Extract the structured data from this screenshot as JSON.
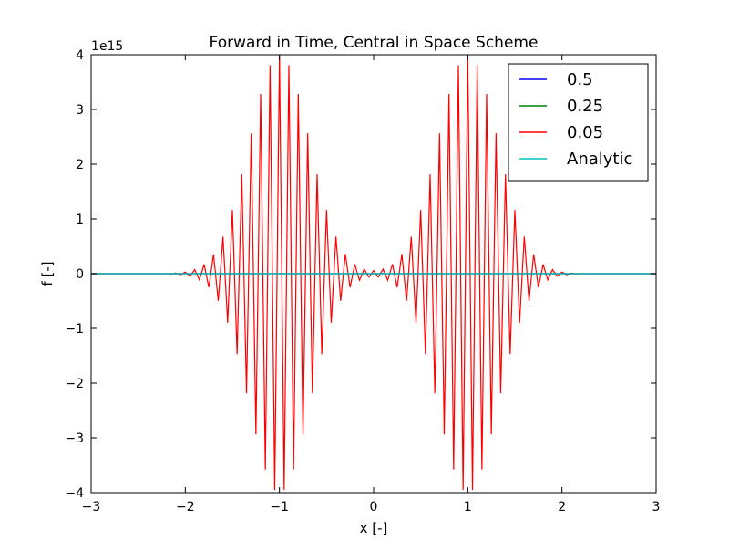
{
  "chart_data": {
    "type": "line",
    "title": "Forward in Time, Central in Space Scheme",
    "xlabel": "x [-]",
    "ylabel": "f [-]",
    "y_multiplier": "1e15",
    "xlim": [
      -3,
      3
    ],
    "ylim": [
      -4,
      4
    ],
    "x_ticks": [
      -3,
      -2,
      -1,
      0,
      1,
      2,
      3
    ],
    "x_tick_labels": [
      "−3",
      "−2",
      "−1",
      "0",
      "1",
      "2",
      "3"
    ],
    "y_ticks": [
      -4,
      -3,
      -2,
      -1,
      0,
      1,
      2,
      3,
      4
    ],
    "y_tick_labels": [
      "−4",
      "−3",
      "−2",
      "−1",
      "0",
      "1",
      "2",
      "3",
      "4"
    ],
    "grid": false,
    "legend_position": "top-right",
    "series": [
      {
        "name": "0.5",
        "color": "#0000ff",
        "form": "flat",
        "value": 0
      },
      {
        "name": "0.25",
        "color": "#008000",
        "form": "flat",
        "value": 0
      },
      {
        "name": "0.05",
        "color": "#ff0000",
        "form": "oscillation",
        "dx": 0.05,
        "x_range": [
          -3,
          3
        ],
        "packets": [
          {
            "center": -1.0,
            "amplitude": 4.0,
            "width": 0.45
          },
          {
            "center": 1.0,
            "amplitude": 4.0,
            "width": 0.45
          }
        ]
      },
      {
        "name": "Analytic",
        "color": "#00bfbf",
        "form": "flat",
        "value": 0
      }
    ]
  }
}
